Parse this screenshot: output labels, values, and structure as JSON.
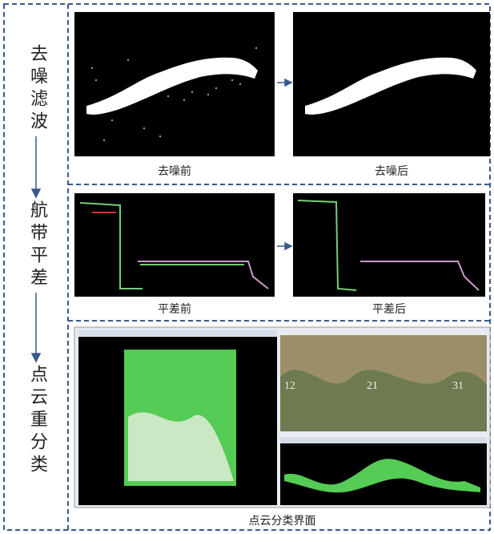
{
  "steps": [
    "去噪滤波",
    "航带平差",
    "点云重分类"
  ],
  "panels": [
    {
      "images": [
        {
          "caption": "去噪前"
        },
        {
          "caption": "去噪后"
        }
      ]
    },
    {
      "images": [
        {
          "caption": "平差前"
        },
        {
          "caption": "平差后"
        }
      ]
    }
  ],
  "classification": {
    "caption": "点云分类界面",
    "tile_labels": [
      "12",
      "21",
      "31"
    ]
  }
}
